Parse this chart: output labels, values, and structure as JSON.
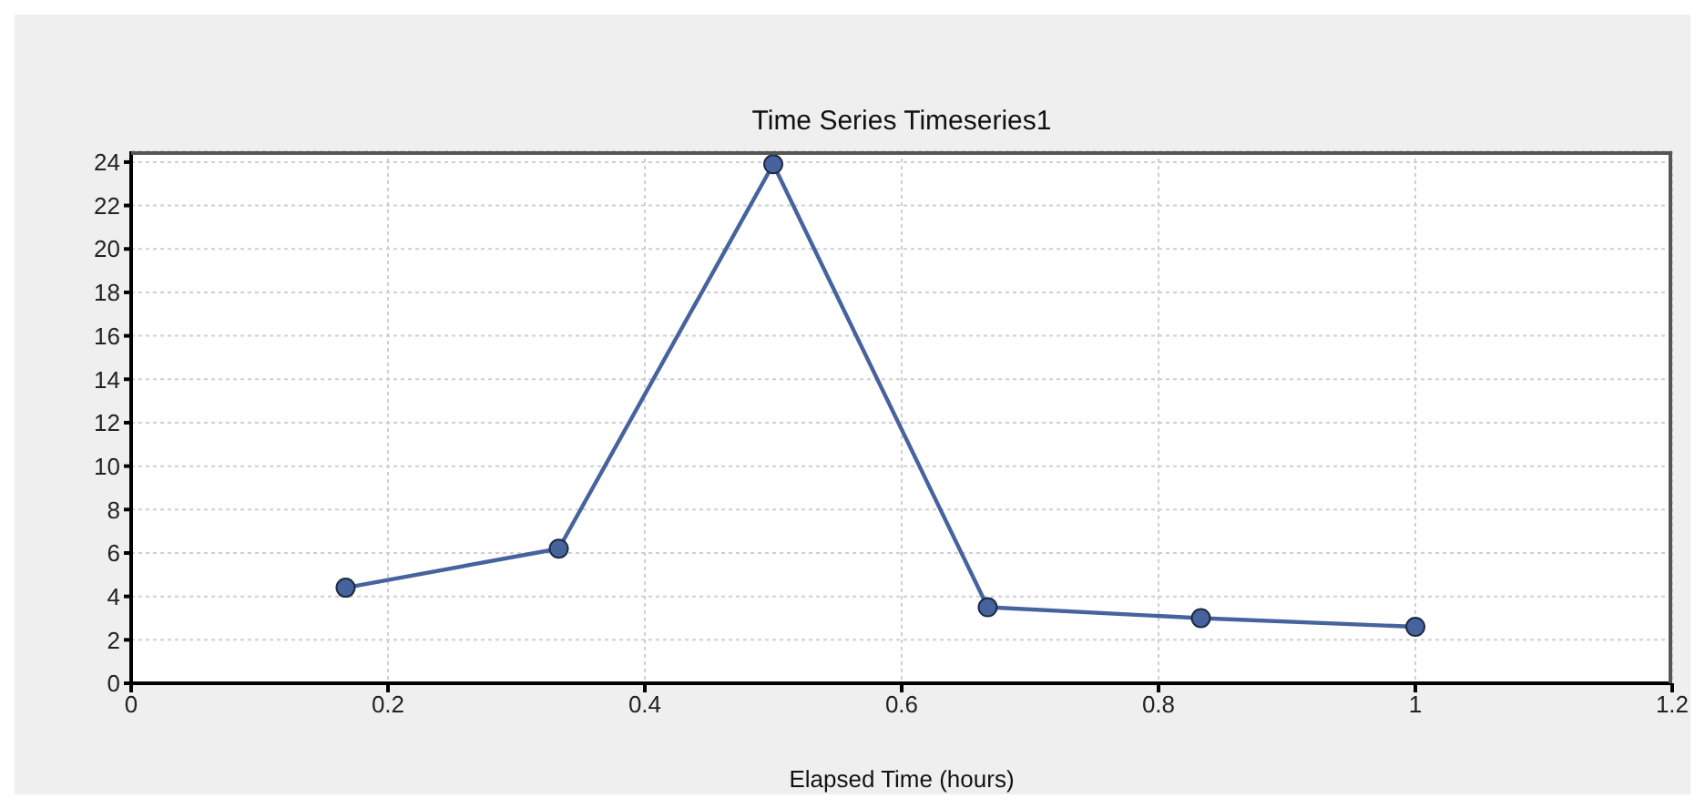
{
  "chart_data": {
    "type": "line",
    "title": "Time Series Timeseries1",
    "xlabel": "Elapsed Time (hours)",
    "x": [
      0.167,
      0.333,
      0.5,
      0.667,
      0.833,
      1
    ],
    "series": [
      {
        "color": "#46639e",
        "values": [
          4.4,
          6.2,
          23.9,
          3.5,
          3.0,
          2.6
        ]
      }
    ],
    "xlim": [
      0,
      1.2
    ],
    "xticks": [
      0,
      0.2,
      0.4,
      0.6,
      0.8,
      1,
      1.2
    ],
    "ylim": [
      0,
      24.5
    ],
    "yticks": [
      0,
      2,
      4,
      6,
      8,
      10,
      12,
      14,
      16,
      18,
      20,
      22,
      24
    ],
    "grid": true,
    "marker": "circle",
    "line_style": "solid",
    "legend": false
  }
}
